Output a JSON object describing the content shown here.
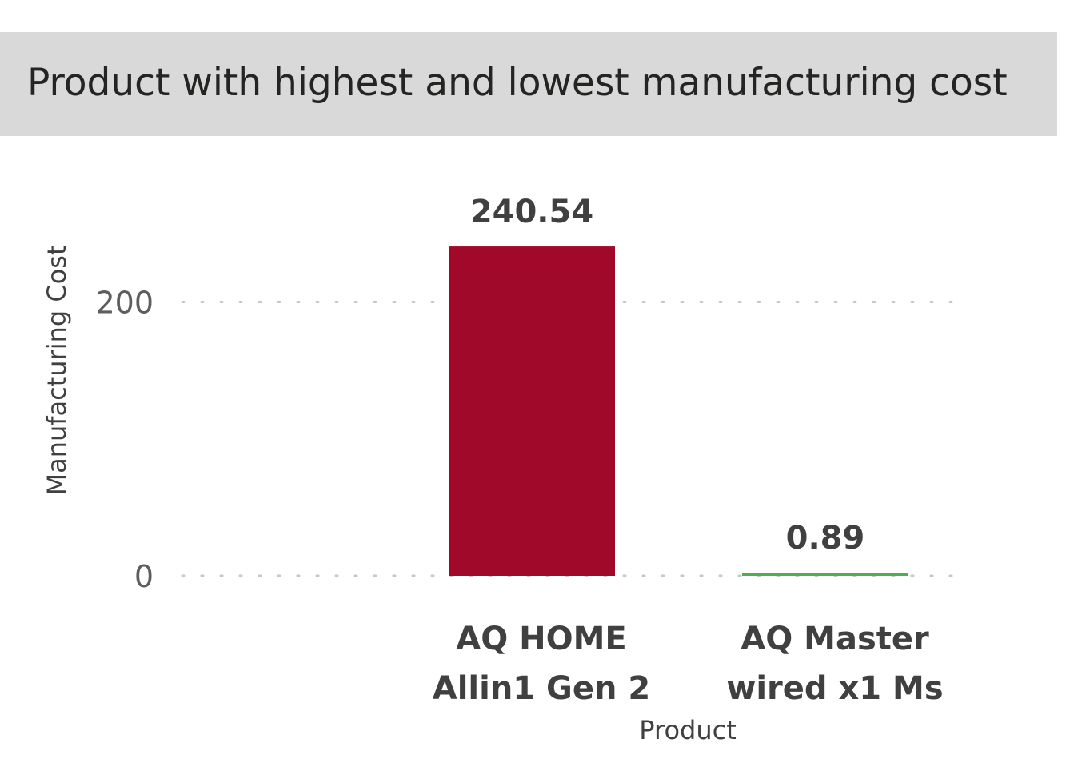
{
  "chart_data": {
    "type": "bar",
    "title": "Product with highest and lowest manufacturing cost",
    "xlabel": "Product",
    "ylabel": "Manufacturing Cost",
    "categories": [
      [
        "AQ HOME",
        "Allin1 Gen 2"
      ],
      [
        "AQ Master",
        "wired x1 Ms"
      ]
    ],
    "values": [
      240.54,
      0.89
    ],
    "data_labels": [
      "240.54",
      "0.89"
    ],
    "yticks": [
      0,
      200
    ],
    "ylim": [
      0,
      240.54
    ],
    "grid": true,
    "colors": [
      "#a0092a",
      "#4caf50"
    ]
  }
}
